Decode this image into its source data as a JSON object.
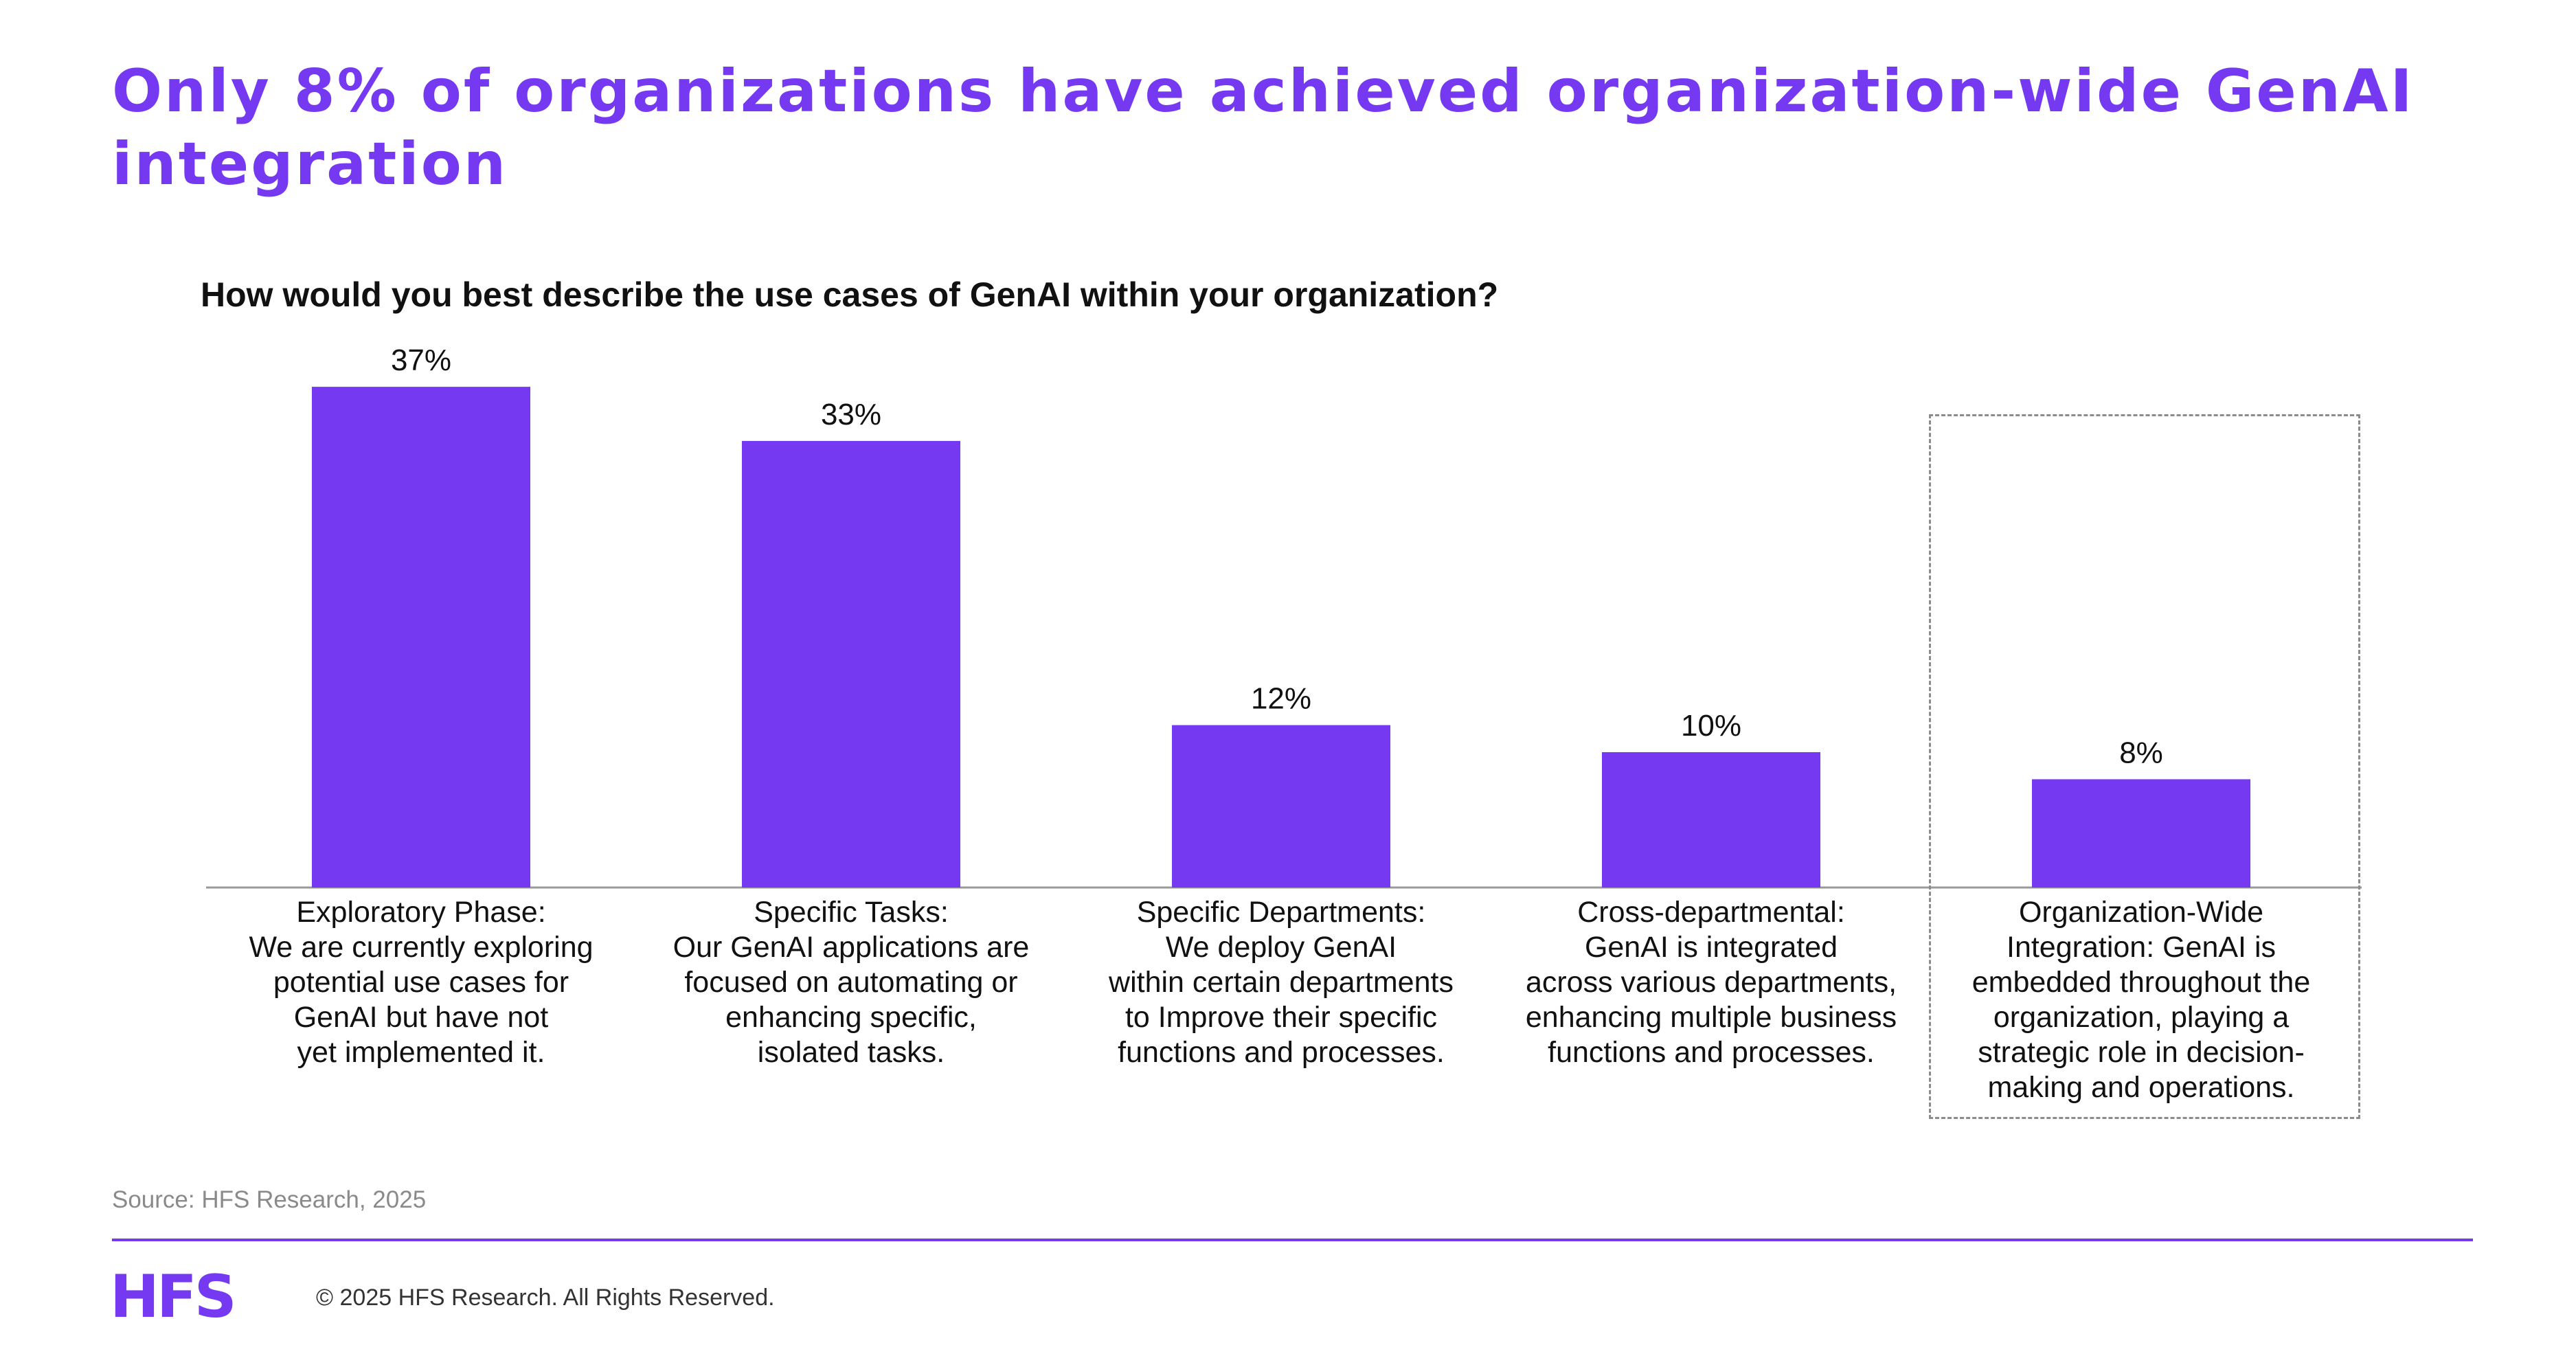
{
  "slide": {
    "title": "Only 8% of organizations have achieved organization-wide GenAI integration",
    "question": "How would you best describe the use cases of GenAI within your organization?",
    "source": "Source: HFS Research, 2025",
    "logo": "HFS",
    "copyright": "© 2025 HFS Research. All Rights Reserved."
  },
  "colors": {
    "accent": "#7639f2",
    "bar": "#7639f2",
    "text": "#111111",
    "muted": "#8a8a8a"
  },
  "chart_data": {
    "type": "bar",
    "title": "How would you best describe the use cases of GenAI within your organization?",
    "xlabel": "",
    "ylabel": "",
    "ylim": [
      0,
      40
    ],
    "grid": false,
    "highlighted_category_index": 4,
    "categories": [
      "Exploratory Phase:\nWe are currently exploring\npotential use cases for\nGenAI but have not\nyet implemented it.",
      "Specific Tasks:\nOur GenAI applications are\nfocused on automating or\nenhancing specific,\nisolated tasks.",
      "Specific Departments:\nWe deploy GenAI\nwithin certain departments\nto Improve their specific\nfunctions and processes.",
      "Cross-departmental:\nGenAI is integrated\nacross various departments,\nenhancing multiple business\nfunctions and processes.",
      "Organization-Wide\nIntegration: GenAI is\nembedded throughout the\norganization, playing a\nstrategic role in decision-\nmaking and operations."
    ],
    "values": [
      37,
      33,
      12,
      10,
      8
    ],
    "data_labels": [
      "37%",
      "33%",
      "12%",
      "10%",
      "8%"
    ]
  }
}
